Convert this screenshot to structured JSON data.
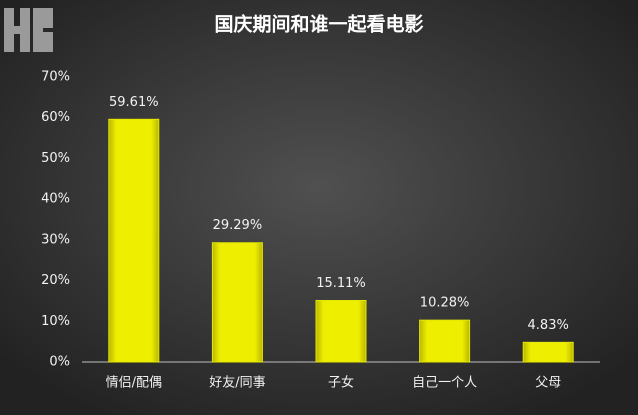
{
  "chart_data": {
    "type": "bar",
    "title": "国庆期间和谁一起看电影",
    "categories": [
      "情侣/配偶",
      "好友/同事",
      "子女",
      "自己一个人",
      "父母"
    ],
    "values": [
      59.61,
      29.29,
      15.11,
      10.28,
      4.83
    ],
    "value_labels": [
      "59.61%",
      "29.29%",
      "15.11%",
      "10.28%",
      "4.83%"
    ],
    "color": "#e6e600",
    "ylim": [
      0,
      70
    ],
    "yticks": [
      {
        "value": 0,
        "label": "0%"
      },
      {
        "value": 10,
        "label": "10%"
      },
      {
        "value": 20,
        "label": "20%"
      },
      {
        "value": 30,
        "label": "30%"
      },
      {
        "value": 40,
        "label": "40%"
      },
      {
        "value": 50,
        "label": "50%"
      },
      {
        "value": 60,
        "label": "60%"
      },
      {
        "value": 70,
        "label": "70%"
      }
    ],
    "grid": false
  }
}
